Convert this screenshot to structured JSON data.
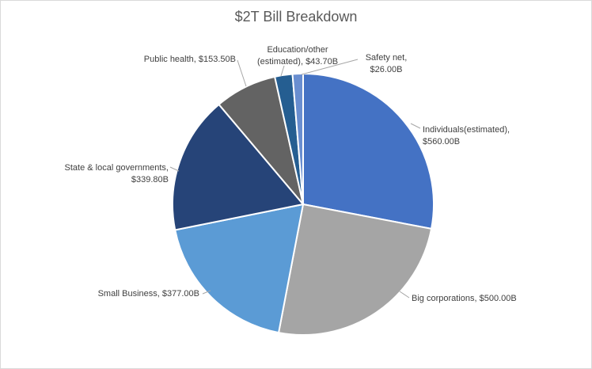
{
  "chart_data": {
    "type": "pie",
    "title": "$2T Bill Breakdown",
    "slices": [
      {
        "name": "Individuals(estimated)",
        "value": 560.0,
        "label_lines": [
          "Individuals(estimated),",
          "$560.00B"
        ],
        "color": "#4472C4"
      },
      {
        "name": "Big corporations",
        "value": 500.0,
        "label_lines": [
          "Big corporations, $500.00B"
        ],
        "color": "#A5A5A5"
      },
      {
        "name": "Small Business",
        "value": 377.0,
        "label_lines": [
          "Small Business, $377.00B"
        ],
        "color": "#5B9BD5"
      },
      {
        "name": "State & local governments",
        "value": 339.8,
        "label_lines": [
          "State & local governments,",
          "$339.80B"
        ],
        "color": "#264478"
      },
      {
        "name": "Public health",
        "value": 153.5,
        "label_lines": [
          "Public health, $153.50B"
        ],
        "color": "#636363"
      },
      {
        "name": "Education/other (estimated)",
        "value": 43.7,
        "label_lines": [
          "Education/other",
          "(estimated), $43.70B"
        ],
        "color": "#255E91"
      },
      {
        "name": "Safety net",
        "value": 26.0,
        "label_lines": [
          "Safety net,",
          "$26.00B"
        ],
        "color": "#698ED0"
      }
    ]
  }
}
